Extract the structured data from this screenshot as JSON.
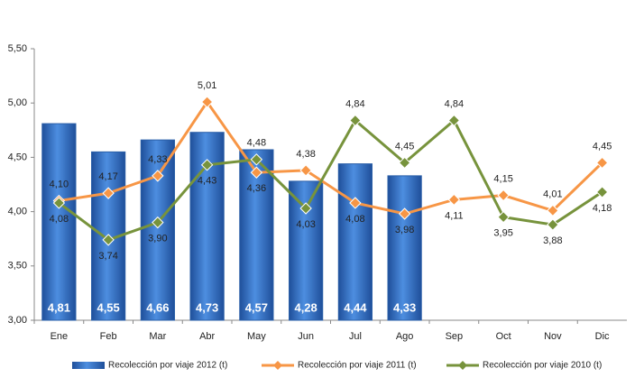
{
  "chart_data": {
    "type": "bar-line",
    "categories": [
      "Ene",
      "Feb",
      "Mar",
      "Abr",
      "May",
      "Jun",
      "Jul",
      "Ago",
      "Sep",
      "Oct",
      "Nov",
      "Dic"
    ],
    "series": [
      {
        "name": "Recolección por viaje 2012 (t)",
        "type": "bar",
        "color": "#3a78c9",
        "values": [
          4.81,
          4.55,
          4.66,
          4.73,
          4.57,
          4.28,
          4.44,
          4.33,
          null,
          null,
          null,
          null
        ],
        "value_labels": [
          "4,81",
          "4,55",
          "4,66",
          "4,73",
          "4,57",
          "4,28",
          "4,44",
          "4,33",
          null,
          null,
          null,
          null
        ]
      },
      {
        "name": "Recolección por viaje 2011 (t)",
        "type": "line",
        "color": "#f79646",
        "values": [
          4.1,
          4.17,
          4.33,
          5.01,
          4.36,
          4.38,
          4.08,
          3.98,
          4.11,
          4.15,
          4.01,
          4.45
        ],
        "value_labels": [
          "4,10",
          "4,17",
          "4,33",
          "5,01",
          "4,36",
          "4,38",
          "4,08",
          "3,98",
          "4,11",
          "4,15",
          "4,01",
          "4,45"
        ]
      },
      {
        "name": "Recolección por viaje 2010 (t)",
        "type": "line",
        "color": "#77933c",
        "values": [
          4.08,
          3.74,
          3.9,
          4.43,
          4.48,
          4.03,
          4.84,
          4.45,
          4.84,
          3.95,
          3.88,
          4.18
        ],
        "value_labels": [
          "4,08",
          "3,74",
          "3,90",
          "4,43",
          "4,48",
          "4,03",
          "4,84",
          "4,45",
          "4,84",
          "3,95",
          "3,88",
          "4,18"
        ]
      }
    ],
    "ylim": [
      3.0,
      5.5
    ],
    "yticks": [
      {
        "value": 3.0,
        "label": "3,00"
      },
      {
        "value": 3.5,
        "label": "3,50"
      },
      {
        "value": 4.0,
        "label": "4,00"
      },
      {
        "value": 4.5,
        "label": "4,50"
      },
      {
        "value": 5.0,
        "label": "5,00"
      },
      {
        "value": 5.5,
        "label": "5,50"
      }
    ],
    "grid": false,
    "legend": "bottom"
  }
}
